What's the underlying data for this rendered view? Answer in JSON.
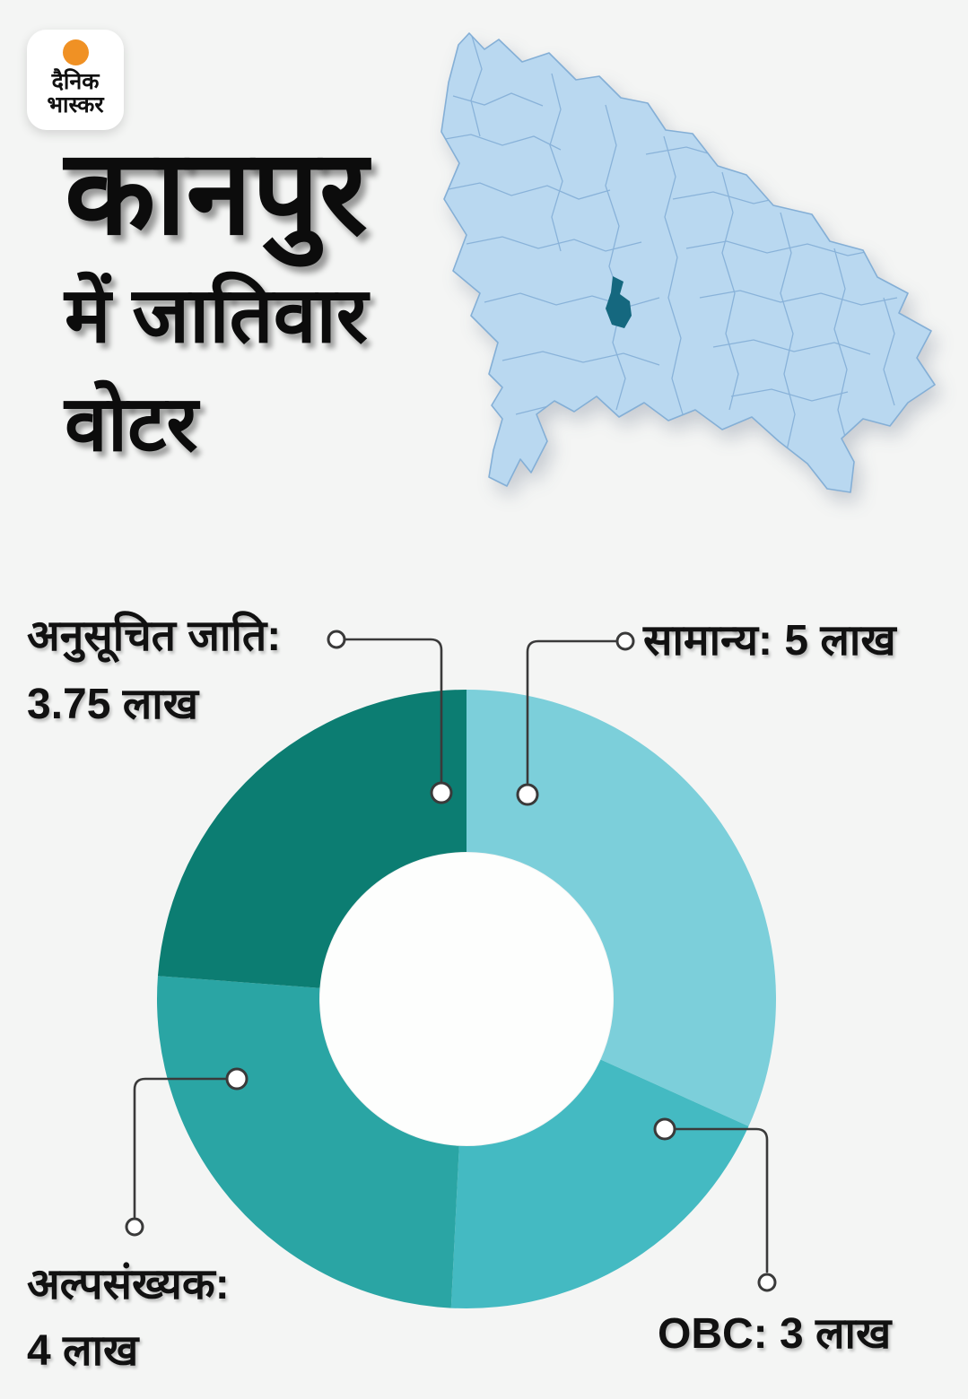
{
  "page": {
    "background": "#f4f5f4"
  },
  "brand": {
    "name": "dainik-bhaskar",
    "logo_line1": "दैनिक",
    "logo_line2": "भास्कर",
    "logo_dot_color": "#f09124"
  },
  "title": {
    "line1": "कानपुर",
    "line2": "में जातिवार",
    "line3": "वोटर"
  },
  "map": {
    "fill": "#b9d8f0",
    "border": "#84afd6",
    "highlight": "#15687f"
  },
  "chart_data": {
    "type": "pie",
    "subtype": "donut",
    "title": "कानपुर में जातिवार वोटर",
    "unit": "लाख",
    "total": 15.75,
    "start_angle_deg": 0,
    "direction": "clockwise",
    "inner_radius_ratio": 0.474,
    "hole_color": "#fdfefd",
    "leader_line_color": "#3a3a3a",
    "categories": [
      "सामान्य",
      "OBC",
      "अल्पसंख्यक",
      "अनुसूचित जाति"
    ],
    "values": [
      5,
      3,
      4,
      3.75
    ],
    "segments": [
      {
        "label": "सामान्य",
        "value": 5,
        "display": "सामान्य: 5 लाख",
        "color": "#7ccfda"
      },
      {
        "label": "OBC",
        "value": 3,
        "display": "OBC: 3 लाख",
        "color": "#44bac2"
      },
      {
        "label": "अल्पसंख्यक",
        "value": 4,
        "display": "अल्पसंख्यक: 4 लाख",
        "color": "#2aa5a4"
      },
      {
        "label": "अनुसूचित जाति",
        "value": 3.75,
        "display": "अनुसूचित जाति: 3.75 लाख",
        "color": "#0c7d72"
      }
    ]
  },
  "labels": {
    "sc": {
      "line1": "अनुसूचित जाति:",
      "line2": "3.75 लाख"
    },
    "general": {
      "text": "सामान्य: 5 लाख"
    },
    "minority": {
      "line1": "अल्पसंख्यक:",
      "line2": "4 लाख"
    },
    "obc": {
      "text": "OBC: 3 लाख"
    }
  }
}
